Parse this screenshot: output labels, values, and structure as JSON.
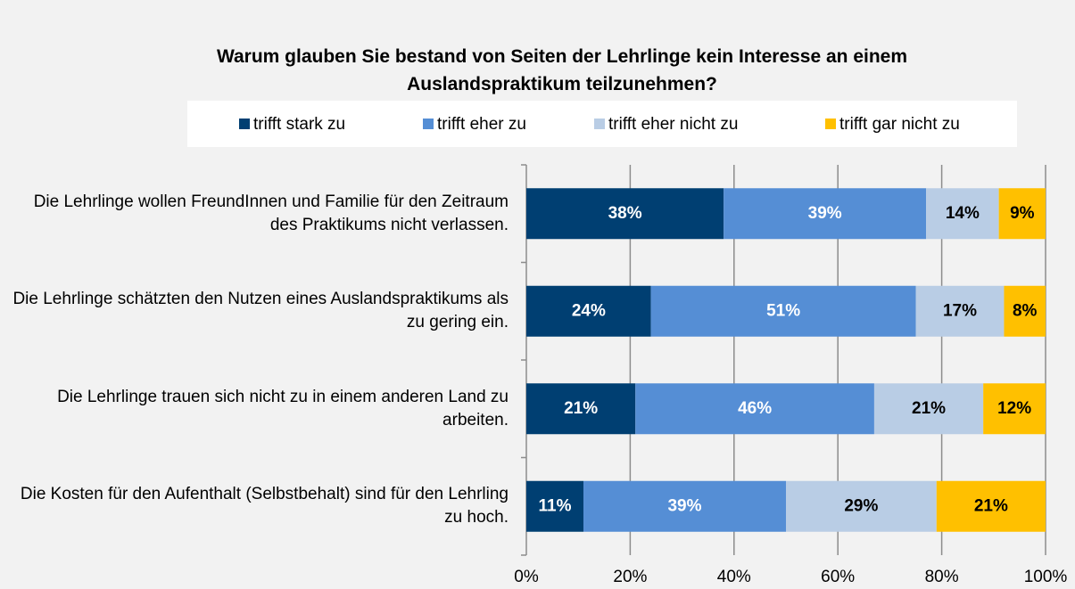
{
  "chart_data": {
    "type": "stacked_bar_horizontal",
    "title": "Warum glauben Sie bestand von Seiten der Lehrlinge kein Interesse an einem Auslandspraktikum teilzunehmen?",
    "categories": [
      "Die Lehrlinge wollen FreundInnen und Familie für den Zeitraum des Praktikums nicht verlassen.",
      "Die Lehrlinge schätzten den Nutzen eines Auslandspraktikums als zu gering ein.",
      "Die Lehrlinge trauen sich nicht zu in einem anderen Land zu arbeiten.",
      "Die Kosten für den Aufenthalt (Selbstbehalt) sind für den Lehrling zu hoch."
    ],
    "series": [
      {
        "name": "trifft stark zu",
        "color": "#003f72",
        "label_color": "#ffffff",
        "values": [
          38,
          24,
          21,
          11
        ],
        "value_labels": [
          "38%",
          "24%",
          "21%",
          "11%"
        ]
      },
      {
        "name": "trifft eher zu",
        "color": "#558ed5",
        "label_color": "#ffffff",
        "values": [
          39,
          51,
          46,
          39
        ],
        "value_labels": [
          "39%",
          "51%",
          "46%",
          "39%"
        ]
      },
      {
        "name": "trifft eher nicht zu",
        "color": "#b9cde5",
        "label_color": "#000000",
        "values": [
          14,
          17,
          21,
          29
        ],
        "value_labels": [
          "14%",
          "17%",
          "21%",
          "29%"
        ]
      },
      {
        "name": "trifft gar nicht zu",
        "color": "#ffc000",
        "label_color": "#000000",
        "values": [
          9,
          8,
          12,
          21
        ],
        "value_labels": [
          "9%",
          "8%",
          "12%",
          "21%"
        ]
      }
    ],
    "xlim": [
      0,
      100
    ],
    "xticks": [
      {
        "value": 0,
        "label": "0%"
      },
      {
        "value": 20,
        "label": "20%"
      },
      {
        "value": 40,
        "label": "40%"
      },
      {
        "value": 60,
        "label": "60%"
      },
      {
        "value": 80,
        "label": "80%"
      },
      {
        "value": 100,
        "label": "100%"
      }
    ],
    "grid": true,
    "legend": "top"
  }
}
